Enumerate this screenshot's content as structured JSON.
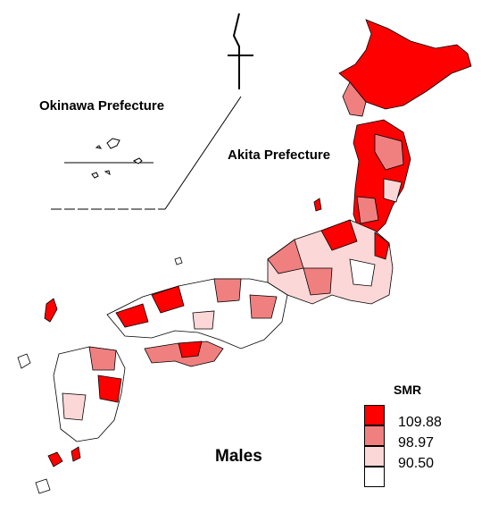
{
  "labels": {
    "okinawa": "Okinawa Prefecture",
    "akita": "Akita Prefecture",
    "sex": "Males"
  },
  "legend": {
    "title": "SMR",
    "items": [
      {
        "value": "109.88",
        "color": "#ff0000"
      },
      {
        "value": "98.97",
        "color": "#f08080"
      },
      {
        "value": "90.50",
        "color": "#fcd7d7"
      },
      {
        "value": "",
        "color": "#ffffff"
      }
    ]
  },
  "colors": {
    "high": "#ff0000",
    "mid": "#f08080",
    "low": "#fcd7d7",
    "lowest": "#ffffff",
    "border": "#000000"
  }
}
